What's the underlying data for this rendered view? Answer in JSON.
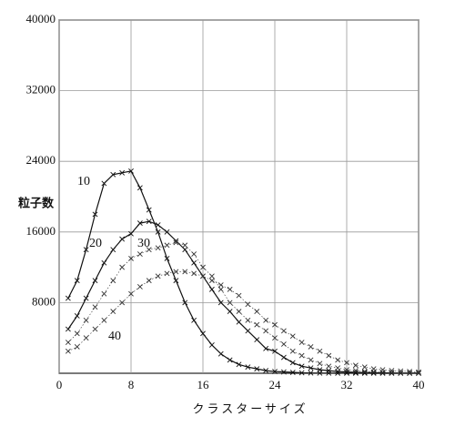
{
  "chart_data": {
    "type": "line",
    "xlabel": "クラスターサイズ",
    "ylabel": "粒子数",
    "x": [
      1,
      2,
      3,
      4,
      5,
      6,
      7,
      8,
      9,
      10,
      11,
      12,
      13,
      14,
      15,
      16,
      17,
      18,
      19,
      20,
      21,
      22,
      23,
      24,
      25,
      26,
      27,
      28,
      29,
      30,
      31,
      32,
      33,
      34,
      35,
      36,
      37,
      38,
      39,
      40
    ],
    "series": [
      {
        "name": "10",
        "color": "#111111",
        "line_style": "solid",
        "values": [
          8500,
          10500,
          14000,
          18000,
          21500,
          22500,
          22700,
          22900,
          21000,
          18500,
          16000,
          13000,
          10500,
          8000,
          6000,
          4500,
          3200,
          2200,
          1500,
          1000,
          700,
          500,
          300,
          200,
          150,
          100,
          50,
          30,
          20,
          20,
          10,
          10,
          10,
          0,
          0,
          0,
          0,
          0,
          0,
          0
        ]
      },
      {
        "name": "20",
        "color": "#111111",
        "line_style": "solid",
        "values": [
          5000,
          6500,
          8500,
          10500,
          12500,
          14000,
          15200,
          15800,
          17000,
          17200,
          16800,
          16000,
          15000,
          14000,
          12500,
          11000,
          9500,
          8000,
          7000,
          5800,
          4800,
          3800,
          2800,
          2500,
          1800,
          1200,
          800,
          600,
          400,
          300,
          200,
          150,
          100,
          80,
          60,
          40,
          30,
          20,
          10,
          10
        ]
      },
      {
        "name": "30",
        "color": "#333333",
        "line_style": "dotted",
        "values": [
          3500,
          4500,
          6000,
          7500,
          9000,
          10500,
          12000,
          13000,
          13500,
          14000,
          14200,
          14500,
          14800,
          14500,
          13500,
          12000,
          11000,
          9500,
          8000,
          7000,
          6000,
          5500,
          4800,
          4000,
          3300,
          2500,
          2000,
          1500,
          1100,
          800,
          600,
          400,
          300,
          200,
          150,
          100,
          80,
          50,
          40,
          30
        ]
      },
      {
        "name": "40",
        "color": "#333333",
        "line_style": "dotted",
        "values": [
          2500,
          3000,
          4000,
          5000,
          6000,
          7000,
          8000,
          9000,
          9800,
          10500,
          11000,
          11300,
          11500,
          11500,
          11300,
          11000,
          10500,
          10000,
          9500,
          8800,
          7800,
          7000,
          6000,
          5500,
          4800,
          4200,
          3500,
          3000,
          2500,
          2000,
          1500,
          1200,
          900,
          700,
          500,
          400,
          300,
          250,
          200,
          150
        ]
      }
    ],
    "xlim": [
      0,
      40
    ],
    "xticks": [
      0,
      8,
      16,
      24,
      32,
      40
    ],
    "ylim": [
      0,
      40000
    ],
    "yticks": [
      8000,
      16000,
      24000,
      32000,
      40000
    ],
    "grid": true
  }
}
